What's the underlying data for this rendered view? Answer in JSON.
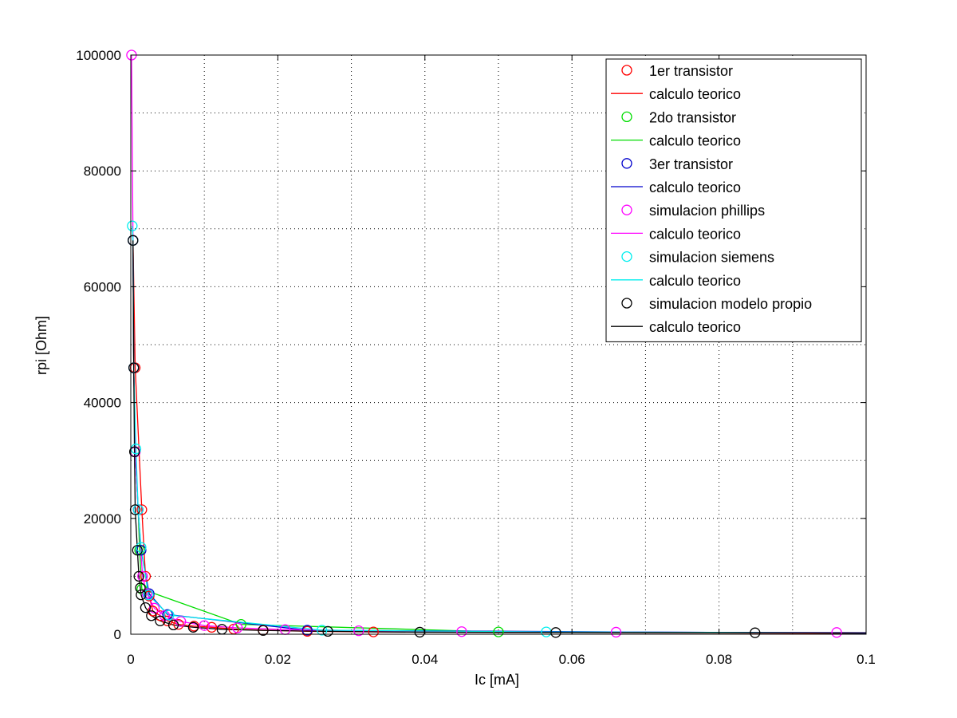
{
  "chart_data": {
    "type": "scatter",
    "title": "",
    "xlabel": "Ic [mA]",
    "ylabel": "rpi [Ohm]",
    "xlim": [
      0,
      0.1
    ],
    "ylim": [
      0,
      100000
    ],
    "x_ticks": [
      "0",
      "0.02",
      "0.04",
      "0.06",
      "0.08",
      "0.1"
    ],
    "y_ticks": [
      "0",
      "20000",
      "40000",
      "60000",
      "80000",
      "100000"
    ],
    "grid": true,
    "legend_position": "top-right",
    "series": [
      {
        "name": "1er transistor",
        "kind": "markers",
        "color": "#ff0000",
        "x": [
          0.0003,
          0.0006,
          0.0015,
          0.002,
          0.0025,
          0.003,
          0.004,
          0.005,
          0.0065,
          0.0086,
          0.011,
          0.014,
          0.018,
          0.024,
          0.033
        ],
        "y": [
          68000,
          46000,
          21500,
          10000,
          6600,
          4000,
          3200,
          2300,
          1700,
          1400,
          1200,
          900,
          700,
          500,
          400
        ]
      },
      {
        "name": "calculo teorico",
        "kind": "line",
        "color": "#ff0000",
        "x": [
          0.0003,
          0.0006,
          0.0015,
          0.002,
          0.0025,
          0.003,
          0.004,
          0.005,
          0.0065,
          0.0086,
          0.011,
          0.014,
          0.018,
          0.024,
          0.033,
          0.1
        ],
        "y": [
          68000,
          46000,
          21500,
          10000,
          6600,
          4000,
          3200,
          2300,
          1700,
          1400,
          1200,
          900,
          700,
          500,
          400,
          150
        ]
      },
      {
        "name": "2do transistor",
        "kind": "markers",
        "color": "#00dd00",
        "x": [
          0.0003,
          0.0004,
          0.0006,
          0.001,
          0.0012,
          0.0015,
          0.015,
          0.05
        ],
        "y": [
          68000,
          46000,
          31500,
          21500,
          14500,
          7800,
          1700,
          400
        ]
      },
      {
        "name": "calculo teorico",
        "kind": "line",
        "color": "#00dd00",
        "x": [
          0.0003,
          0.0004,
          0.0006,
          0.001,
          0.0012,
          0.0015,
          0.015,
          0.05,
          0.1
        ],
        "y": [
          68000,
          46000,
          31500,
          21500,
          14500,
          7800,
          1700,
          400,
          200
        ]
      },
      {
        "name": "3er transistor",
        "kind": "markers",
        "color": "#0000cc",
        "x": [
          0.0003,
          0.0004,
          0.0006,
          0.001,
          0.0014,
          0.0025,
          0.005,
          0.024
        ],
        "y": [
          68000,
          46000,
          31500,
          21500,
          14500,
          7000,
          3400,
          700
        ]
      },
      {
        "name": "calculo teorico",
        "kind": "line",
        "color": "#0000cc",
        "x": [
          0.0003,
          0.0004,
          0.0006,
          0.001,
          0.0014,
          0.0025,
          0.005,
          0.024,
          0.1
        ],
        "y": [
          68000,
          46000,
          31500,
          21500,
          14500,
          7000,
          3400,
          700,
          170
        ]
      },
      {
        "name": "simulacion phillips",
        "kind": "markers",
        "color": "#ff00ff",
        "x": [
          0.0001,
          0.0003,
          0.0004,
          0.0006,
          0.001,
          0.0016,
          0.0022,
          0.0032,
          0.0046,
          0.0068,
          0.01,
          0.0145,
          0.021,
          0.031,
          0.045,
          0.066,
          0.096
        ],
        "y": [
          100000,
          68000,
          46000,
          31500,
          21500,
          10000,
          7000,
          4500,
          3200,
          2200,
          1500,
          1100,
          800,
          600,
          450,
          350,
          300
        ]
      },
      {
        "name": "calculo teorico",
        "kind": "line",
        "color": "#ff00ff",
        "x": [
          0.0001,
          0.0003,
          0.0004,
          0.0006,
          0.001,
          0.0016,
          0.0022,
          0.0032,
          0.0046,
          0.0068,
          0.01,
          0.0145,
          0.021,
          0.031,
          0.045,
          0.066,
          0.096,
          0.1
        ],
        "y": [
          100000,
          68000,
          46000,
          31500,
          21500,
          10000,
          7000,
          4500,
          3200,
          2200,
          1500,
          1100,
          800,
          600,
          450,
          350,
          300,
          290
        ]
      },
      {
        "name": "simulacion siemens",
        "kind": "markers",
        "color": "#00eeee",
        "x": [
          0.0002,
          0.0003,
          0.0004,
          0.0007,
          0.001,
          0.0014,
          0.0024,
          0.0052,
          0.026,
          0.0565
        ],
        "y": [
          70500,
          68000,
          46000,
          32000,
          21500,
          15000,
          6800,
          3300,
          700,
          400
        ]
      },
      {
        "name": "calculo teorico",
        "kind": "line",
        "color": "#00eeee",
        "x": [
          0.0002,
          0.0003,
          0.0004,
          0.0007,
          0.001,
          0.0014,
          0.0024,
          0.0052,
          0.026,
          0.0565,
          0.1
        ],
        "y": [
          70500,
          68000,
          46000,
          32000,
          21500,
          15000,
          6800,
          3300,
          700,
          400,
          250
        ]
      },
      {
        "name": "simulacion modelo propio",
        "kind": "markers",
        "color": "#000000",
        "x": [
          0.0003,
          0.0004,
          0.0005,
          0.0006,
          0.0009,
          0.0011,
          0.0013,
          0.0014,
          0.002,
          0.0028,
          0.004,
          0.0058,
          0.0085,
          0.0124,
          0.018,
          0.0268,
          0.0393,
          0.0578,
          0.0849
        ],
        "y": [
          68000,
          46000,
          31500,
          21500,
          14500,
          10000,
          8000,
          6800,
          4600,
          3200,
          2300,
          1600,
          1200,
          850,
          650,
          500,
          350,
          300,
          250
        ]
      },
      {
        "name": "calculo teorico",
        "kind": "line",
        "color": "#000000",
        "x": [
          0.0003,
          0.0004,
          0.0005,
          0.0006,
          0.0009,
          0.0011,
          0.0013,
          0.0014,
          0.002,
          0.0028,
          0.004,
          0.0058,
          0.0085,
          0.0124,
          0.018,
          0.0268,
          0.0393,
          0.0578,
          0.0849,
          0.1
        ],
        "y": [
          68000,
          46000,
          31500,
          21500,
          14500,
          10000,
          8000,
          6800,
          4600,
          3200,
          2300,
          1600,
          1200,
          850,
          650,
          500,
          350,
          300,
          250,
          220
        ]
      }
    ]
  }
}
